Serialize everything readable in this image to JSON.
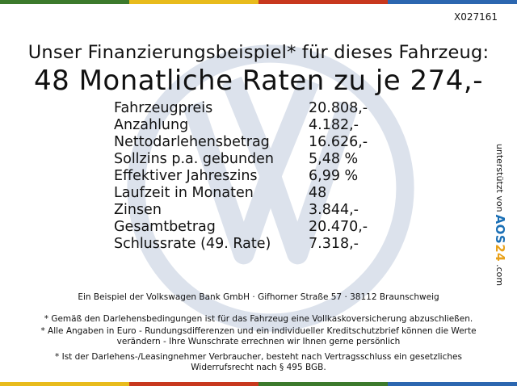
{
  "colors": {
    "top_bar": [
      "#3c7a2c",
      "#e8bb1c",
      "#c8381e",
      "#2c67b0"
    ],
    "bottom_bar": [
      "#e8bb1c",
      "#c8381e",
      "#3c7a2c",
      "#2c67b0"
    ],
    "watermark": "#dce2ec",
    "logo_blue": "#1a6fb5",
    "logo_orange": "#e8a11a"
  },
  "icons": {
    "watermark": "vw-logo-watermark-icon"
  },
  "code": "X027161",
  "headline": {
    "line1": "Unser Finanzierungsbeispiel* für dieses Fahrzeug:",
    "line2": "48 Monatliche Raten zu je 274,-"
  },
  "finance_table": [
    {
      "label": "Fahrzeugpreis",
      "value": "20.808,-"
    },
    {
      "label": "Anzahlung",
      "value": "4.182,-"
    },
    {
      "label": "Nettodarlehensbetrag",
      "value": "16.626,-"
    },
    {
      "label": "Sollzins p.a. gebunden",
      "value": "5,48 %"
    },
    {
      "label": "Effektiver Jahreszins",
      "value": "6,99 %"
    },
    {
      "label": "Laufzeit in Monaten",
      "value": "48"
    },
    {
      "label": "Zinsen",
      "value": "3.844,-"
    },
    {
      "label": "Gesamtbetrag",
      "value": "20.470,-"
    },
    {
      "label": "Schlussrate (49. Rate)",
      "value": "7.318,-"
    }
  ],
  "bank_line": "Ein Beispiel der Volkswagen Bank GmbH · Gifhorner Straße 57 · 38112 Braunschweig",
  "notes": [
    "* Gemäß den Darlehensbedingungen ist für das Fahrzeug eine Vollkaskoversicherung abzuschließen.",
    "* Alle Angaben in Euro - Rundungsdifferenzen und ein individueller Kreditschutzbrief können die Werte verändern - Ihre Wunschrate errechnen wir Ihnen gerne persönlich",
    "* Ist der Darlehens-/Leasingnehmer Verbraucher, besteht nach Vertragsschluss ein gesetzliches Widerrufsrecht nach § 495 BGB."
  ],
  "side": {
    "prefix": "unterstützt von",
    "logo_a": "AOS",
    "logo_b": "24",
    "suffix": ".com"
  }
}
